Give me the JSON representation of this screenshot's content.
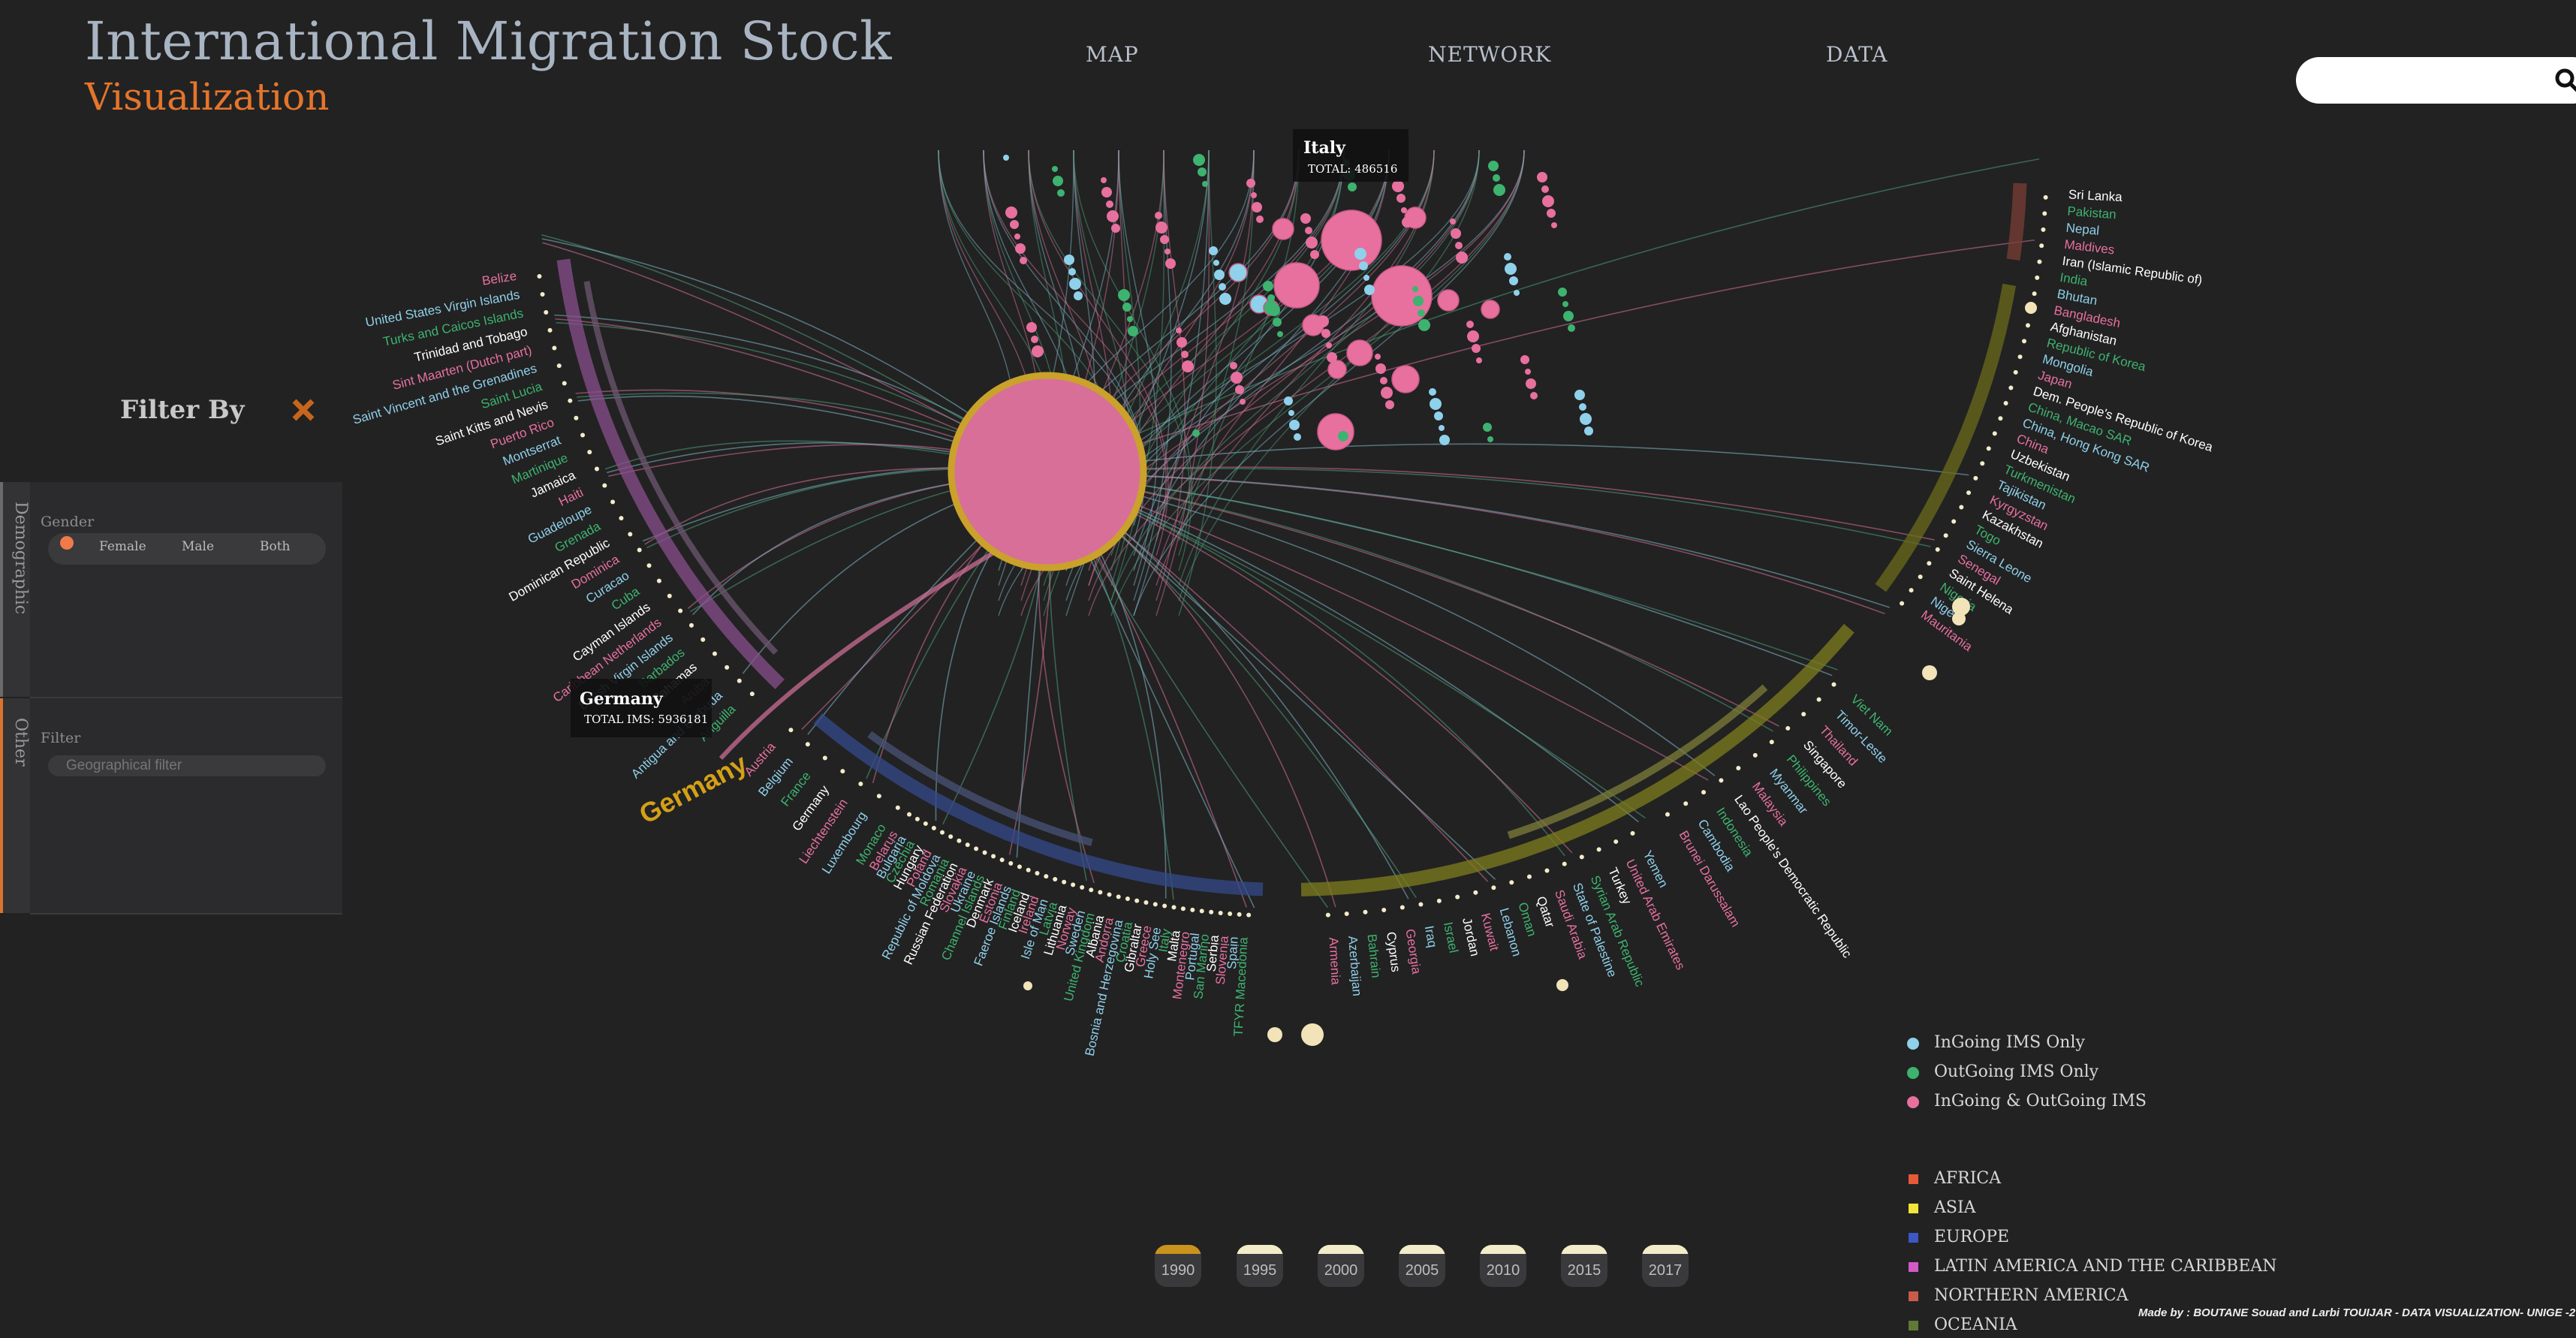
{
  "header": {
    "title": "International Migration Stock",
    "subtitle": "Visualization",
    "nav": [
      "MAP",
      "NETWORK",
      "DATA"
    ],
    "search_placeholder": ""
  },
  "filter": {
    "title": "Filter By",
    "tabs": [
      "Demographic",
      "Other"
    ],
    "gender_label": "Gender",
    "gender_options": [
      "Female",
      "Male",
      "Both"
    ],
    "selected_gender": "Female",
    "filter_label": "Filter",
    "geo_placeholder": "Geographical filter"
  },
  "tooltips": [
    {
      "name": "Italy",
      "total": "TOTAL: 486516"
    },
    {
      "name": "Germany",
      "total": "TOTAL IMS: 5936181"
    }
  ],
  "highlighted_country": "Germany",
  "left_arc_countries": [
    "Belize",
    "United States Virgin Islands",
    "Turks and Caicos Islands",
    "Trinidad and Tobago",
    "Sint Maarten (Dutch part)",
    "Saint Vincent and the Grenadines",
    "Saint Lucia",
    "Saint Kitts and Nevis",
    "Puerto Rico",
    "Montserrat",
    "Martinique",
    "Jamaica",
    "Haiti",
    "Guadeloupe",
    "Grenada",
    "Dominican Republic",
    "Dominica",
    "Curacao",
    "Cuba",
    "Cayman Islands",
    "Caribbean Netherlands",
    "British Virgin Islands",
    "Barbados",
    "Bahamas",
    "Aruba",
    "Antigua and Barbuda",
    "Anguilla"
  ],
  "right_top_countries": [
    "Mauritania",
    "Niger",
    "Nigeria",
    "Saint Helena",
    "Senegal",
    "Sierra Leone",
    "Togo",
    "Kazakhstan",
    "Kyrgyzstan",
    "Tajikistan",
    "Turkmenistan",
    "Uzbekistan",
    "China",
    "China, Hong Kong SAR",
    "China, Macao SAR",
    "Dem. People's Republic of Korea",
    "Japan",
    "Mongolia",
    "Republic of Korea",
    "Afghanistan",
    "Bangladesh",
    "Bhutan",
    "India",
    "Iran (Islamic Republic of)",
    "Maldives",
    "Nepal",
    "Pakistan",
    "Sri Lanka"
  ],
  "right_lower_countries": [
    "Brunei Darussalam",
    "Cambodia",
    "Indonesia",
    "Lao People's Democratic Republic",
    "Malaysia",
    "Myanmar",
    "Philippines",
    "Singapore",
    "Thailand",
    "Timor-Leste",
    "Viet Nam"
  ],
  "bottom_right_countries": [
    "Armenia",
    "Azerbaijan",
    "Bahrain",
    "Cyprus",
    "Georgia",
    "Iraq",
    "Israel",
    "Jordan",
    "Kuwait",
    "Lebanon",
    "Oman",
    "Qatar",
    "Saudi Arabia",
    "State of Palestine",
    "Syrian Arab Republic",
    "Turkey",
    "United Arab Emirates",
    "Yemen"
  ],
  "bottom_countries": [
    "Belarus",
    "Bulgaria",
    "Czechia",
    "Hungary",
    "Poland",
    "Republic of Moldova",
    "Romania",
    "Russian Federation",
    "Slovakia",
    "Ukraine",
    "Channel Islands",
    "Denmark",
    "Estonia",
    "Faeroe Islands",
    "Finland",
    "Iceland",
    "Ireland",
    "Isle of Man",
    "Latvia",
    "Lithuania",
    "Norway",
    "Sweden",
    "United Kingdom",
    "Albania",
    "Andorra",
    "Bosnia and Herzegovina",
    "Croatia",
    "Gibraltar",
    "Greece",
    "Holy See",
    "Italy",
    "Malta",
    "Montenegro",
    "Portugal",
    "San Marino",
    "Serbia",
    "Slovenia",
    "Spain",
    "TFYR Macedonia"
  ],
  "western_europe": [
    "Austria",
    "Belgium",
    "France",
    "Germany",
    "Liechtenstein",
    "Luxembourg",
    "Monaco"
  ],
  "legend_types": [
    "InGoing IMS Only",
    "OutGoing IMS Only",
    "InGoing & OutGoing IMS"
  ],
  "legend_regions": [
    "AFRICA",
    "ASIA",
    "EUROPE",
    "LATIN AMERICA AND THE CARIBBEAN",
    "NORTHERN AMERICA",
    "OCEANIA"
  ],
  "colors": {
    "ingoing": "#8fd0ea",
    "outgoing": "#3db36f",
    "both": "#e8709f",
    "africa": "#e65a3a",
    "asia": "#f3e43a",
    "europe": "#3b57c8",
    "latin_america": "#cf5ac8",
    "northern_america": "#cc5a4a",
    "oceania": "#5f7a35",
    "accent": "#e5752a",
    "highlight": "#d4a017"
  },
  "years": [
    "1990",
    "1995",
    "2000",
    "2005",
    "2010",
    "2015",
    "2017"
  ],
  "selected_year": "1990",
  "credits": "Made by : BOUTANE Souad and Larbi TOUIJAR - DATA VISUALIZATION- UNIGE -2"
}
